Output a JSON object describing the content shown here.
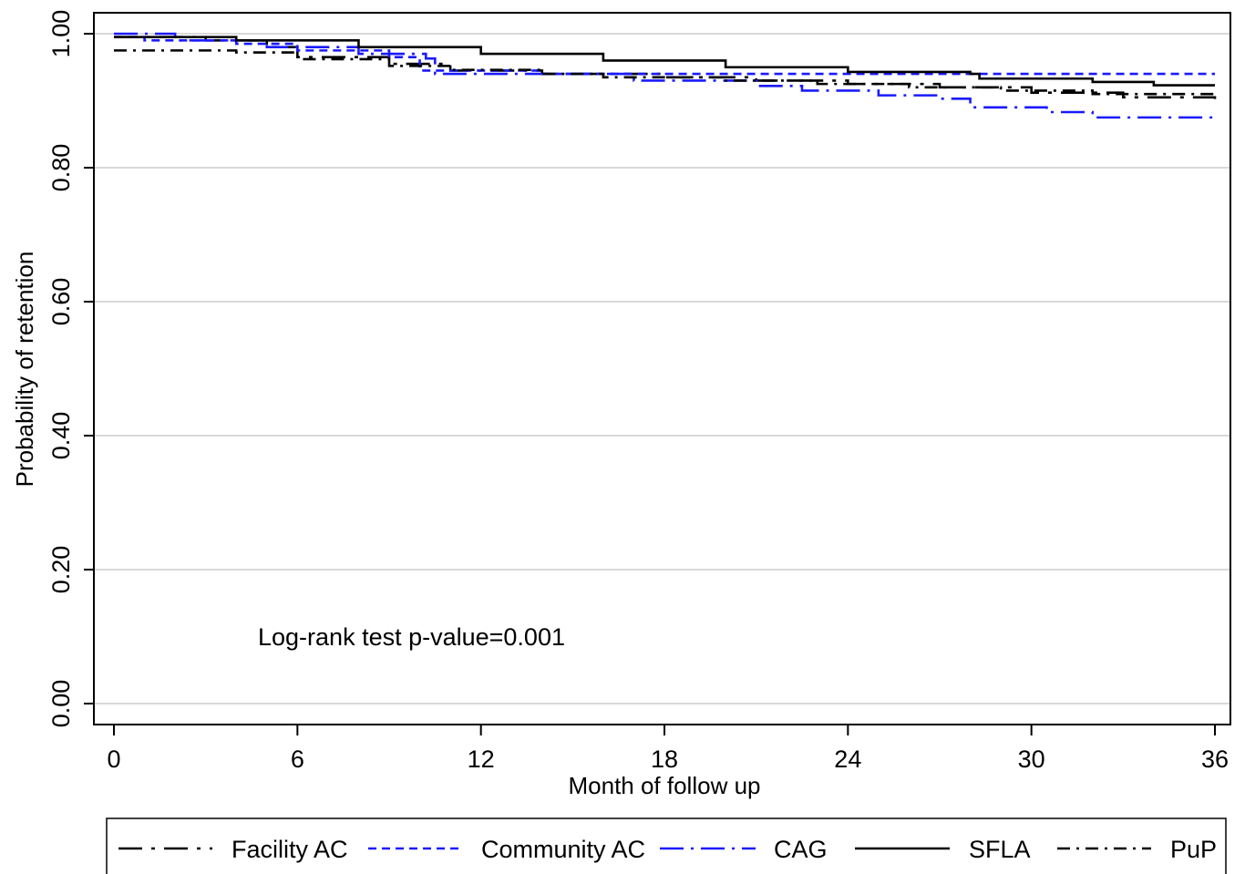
{
  "chart_data": {
    "type": "line",
    "subtype": "kaplan-meier step curves",
    "xlabel": "Month of follow up",
    "ylabel": "Probability of retention",
    "x_ticks": [
      "0",
      "6",
      "12",
      "18",
      "24",
      "30",
      "36"
    ],
    "y_ticks": [
      "0.00",
      "0.20",
      "0.40",
      "0.60",
      "0.80",
      "1.00"
    ],
    "xlim": [
      0,
      36
    ],
    "ylim": [
      0,
      1
    ],
    "grid": "horizontal",
    "legend_position": "bottom",
    "annotation": "Log-rank test p-value=0.001",
    "series": [
      {
        "name": "Facility AC",
        "color": "#000000",
        "dash": "long-dash",
        "points": [
          [
            0,
            0.995
          ],
          [
            3,
            0.99
          ],
          [
            5,
            0.98
          ],
          [
            6,
            0.965
          ],
          [
            9,
            0.955
          ],
          [
            11,
            0.945
          ],
          [
            14,
            0.94
          ],
          [
            18,
            0.935
          ],
          [
            21,
            0.93
          ],
          [
            24,
            0.925
          ],
          [
            27,
            0.92
          ],
          [
            30,
            0.912
          ],
          [
            33,
            0.905
          ],
          [
            36,
            0.9
          ]
        ]
      },
      {
        "name": "Community AC",
        "color": "#1a1aff",
        "dash": "short-dash",
        "points": [
          [
            0,
            0.995
          ],
          [
            1,
            0.99
          ],
          [
            4,
            0.985
          ],
          [
            6,
            0.975
          ],
          [
            9,
            0.965
          ],
          [
            10,
            0.945
          ],
          [
            14,
            0.94
          ],
          [
            20,
            0.94
          ],
          [
            36,
            0.94
          ]
        ]
      },
      {
        "name": "CAG",
        "color": "#1a1aff",
        "dash": "long-dash-dot",
        "points": [
          [
            0,
            1.0
          ],
          [
            2,
            0.99
          ],
          [
            5,
            0.98
          ],
          [
            8,
            0.97
          ],
          [
            10.2,
            0.963
          ],
          [
            10.5,
            0.94
          ],
          [
            17,
            0.93
          ],
          [
            21,
            0.922
          ],
          [
            22.5,
            0.915
          ],
          [
            25,
            0.908
          ],
          [
            27,
            0.903
          ],
          [
            28,
            0.89
          ],
          [
            30.5,
            0.883
          ],
          [
            32,
            0.875
          ],
          [
            36,
            0.873
          ]
        ]
      },
      {
        "name": "SFLA",
        "color": "#000000",
        "dash": "solid",
        "points": [
          [
            0,
            0.995
          ],
          [
            4,
            0.99
          ],
          [
            8,
            0.98
          ],
          [
            12,
            0.97
          ],
          [
            16,
            0.96
          ],
          [
            20,
            0.95
          ],
          [
            24,
            0.943
          ],
          [
            28,
            0.94
          ],
          [
            28.3,
            0.933
          ],
          [
            32,
            0.928
          ],
          [
            34,
            0.923
          ],
          [
            36,
            0.923
          ]
        ]
      },
      {
        "name": "PuP",
        "color": "#000000",
        "dash": "dash-dot",
        "points": [
          [
            0,
            0.975
          ],
          [
            4,
            0.972
          ],
          [
            6,
            0.962
          ],
          [
            9,
            0.952
          ],
          [
            11,
            0.946
          ],
          [
            14,
            0.94
          ],
          [
            16,
            0.935
          ],
          [
            20,
            0.93
          ],
          [
            23,
            0.925
          ],
          [
            26,
            0.92
          ],
          [
            29,
            0.915
          ],
          [
            32,
            0.91
          ],
          [
            36,
            0.91
          ]
        ]
      }
    ]
  }
}
